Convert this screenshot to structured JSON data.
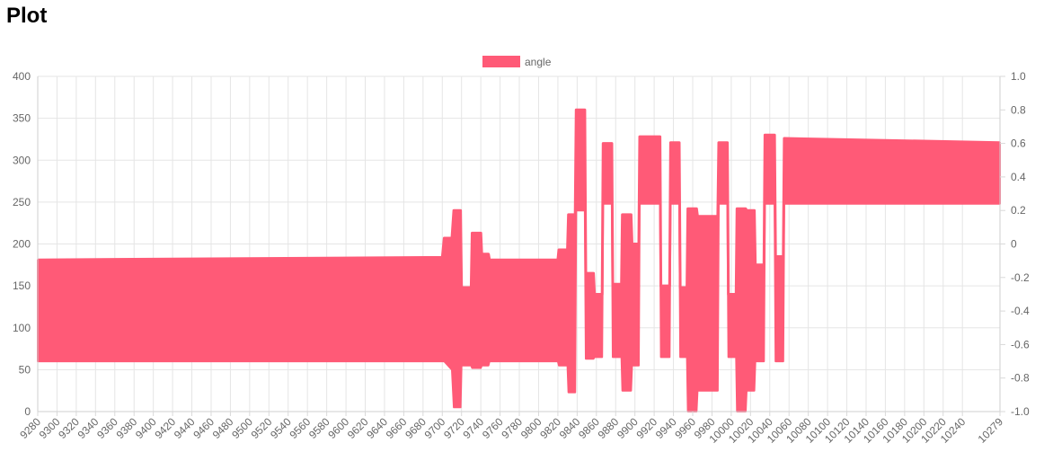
{
  "page": {
    "heading": "Plot"
  },
  "chart_data": {
    "type": "line",
    "legend": {
      "position": "top",
      "label": "angle",
      "color": "#ff5a77"
    },
    "grid": true,
    "y_left": {
      "min": 0,
      "max": 400,
      "ticks": [
        0,
        50,
        100,
        150,
        200,
        250,
        300,
        350,
        400
      ]
    },
    "y_right": {
      "min": -1.0,
      "max": 1.0,
      "ticks": [
        "-1.0",
        "-0.8",
        "-0.6",
        "-0.4",
        "-0.2",
        "0",
        "0.2",
        "0.4",
        "0.6",
        "0.8",
        "1.0"
      ]
    },
    "x": {
      "min": 9280,
      "max": 10279,
      "tick_labels": [
        "9280",
        "9300",
        "9320",
        "9340",
        "9360",
        "9380",
        "9400",
        "9420",
        "9440",
        "9460",
        "9480",
        "9500",
        "9520",
        "9540",
        "9560",
        "9580",
        "9600",
        "9620",
        "9640",
        "9660",
        "9680",
        "9700",
        "9720",
        "9740",
        "9760",
        "9780",
        "9800",
        "9820",
        "9840",
        "9860",
        "9880",
        "9900",
        "9920",
        "9940",
        "9960",
        "9980",
        "10000",
        "10020",
        "10040",
        "10060",
        "10080",
        "10100",
        "10120",
        "10140",
        "10160",
        "10180",
        "10200",
        "10220",
        "10240",
        "10279"
      ]
    },
    "series": [
      {
        "name": "angle",
        "color": "#ff5a77",
        "envelope": [
          {
            "x": 9280,
            "low": 60,
            "high": 181
          },
          {
            "x": 9700,
            "low": 60,
            "high": 184
          },
          {
            "x": 9702,
            "low": 60,
            "high": 207
          },
          {
            "x": 9710,
            "low": 50,
            "high": 207
          },
          {
            "x": 9712,
            "low": 5,
            "high": 240
          },
          {
            "x": 9719,
            "low": 5,
            "high": 240
          },
          {
            "x": 9720,
            "low": 55,
            "high": 148
          },
          {
            "x": 9730,
            "low": 55,
            "high": 148
          },
          {
            "x": 9731,
            "low": 52,
            "high": 213
          },
          {
            "x": 9740,
            "low": 52,
            "high": 213
          },
          {
            "x": 9741,
            "low": 55,
            "high": 188
          },
          {
            "x": 9748,
            "low": 55,
            "high": 188
          },
          {
            "x": 9749,
            "low": 60,
            "high": 181
          },
          {
            "x": 9820,
            "low": 60,
            "high": 181
          },
          {
            "x": 9821,
            "low": 55,
            "high": 193
          },
          {
            "x": 9830,
            "low": 55,
            "high": 193
          },
          {
            "x": 9831,
            "low": 23,
            "high": 235
          },
          {
            "x": 9838,
            "low": 23,
            "high": 235
          },
          {
            "x": 9839,
            "low": 240,
            "high": 360
          },
          {
            "x": 9848,
            "low": 240,
            "high": 360
          },
          {
            "x": 9849,
            "low": 63,
            "high": 165
          },
          {
            "x": 9857,
            "low": 63,
            "high": 165
          },
          {
            "x": 9858,
            "low": 65,
            "high": 140
          },
          {
            "x": 9866,
            "low": 65,
            "high": 140
          },
          {
            "x": 9867,
            "low": 248,
            "high": 320
          },
          {
            "x": 9876,
            "low": 248,
            "high": 320
          },
          {
            "x": 9877,
            "low": 65,
            "high": 152
          },
          {
            "x": 9886,
            "low": 65,
            "high": 152
          },
          {
            "x": 9887,
            "low": 25,
            "high": 235
          },
          {
            "x": 9896,
            "low": 25,
            "high": 235
          },
          {
            "x": 9897,
            "low": 55,
            "high": 200
          },
          {
            "x": 9904,
            "low": 55,
            "high": 200
          },
          {
            "x": 9905,
            "low": 248,
            "high": 328
          },
          {
            "x": 9926,
            "low": 248,
            "high": 328
          },
          {
            "x": 9927,
            "low": 65,
            "high": 150
          },
          {
            "x": 9936,
            "low": 65,
            "high": 150
          },
          {
            "x": 9937,
            "low": 248,
            "high": 321
          },
          {
            "x": 9946,
            "low": 248,
            "high": 321
          },
          {
            "x": 9947,
            "low": 65,
            "high": 148
          },
          {
            "x": 9954,
            "low": 65,
            "high": 148
          },
          {
            "x": 9955,
            "low": 0,
            "high": 242
          },
          {
            "x": 9964,
            "low": 0,
            "high": 242
          },
          {
            "x": 9965,
            "low": 25,
            "high": 233
          },
          {
            "x": 9986,
            "low": 25,
            "high": 233
          },
          {
            "x": 9987,
            "low": 248,
            "high": 321
          },
          {
            "x": 9996,
            "low": 248,
            "high": 321
          },
          {
            "x": 9997,
            "low": 65,
            "high": 140
          },
          {
            "x": 10005,
            "low": 65,
            "high": 140
          },
          {
            "x": 10006,
            "low": 0,
            "high": 242
          },
          {
            "x": 10015,
            "low": 0,
            "high": 242
          },
          {
            "x": 10016,
            "low": 25,
            "high": 240
          },
          {
            "x": 10024,
            "low": 25,
            "high": 240
          },
          {
            "x": 10025,
            "low": 60,
            "high": 175
          },
          {
            "x": 10034,
            "low": 60,
            "high": 175
          },
          {
            "x": 10035,
            "low": 248,
            "high": 330
          },
          {
            "x": 10045,
            "low": 248,
            "high": 330
          },
          {
            "x": 10046,
            "low": 60,
            "high": 185
          },
          {
            "x": 10054,
            "low": 60,
            "high": 185
          },
          {
            "x": 10055,
            "low": 248,
            "high": 326
          },
          {
            "x": 10279,
            "low": 248,
            "high": 321
          }
        ]
      }
    ]
  }
}
